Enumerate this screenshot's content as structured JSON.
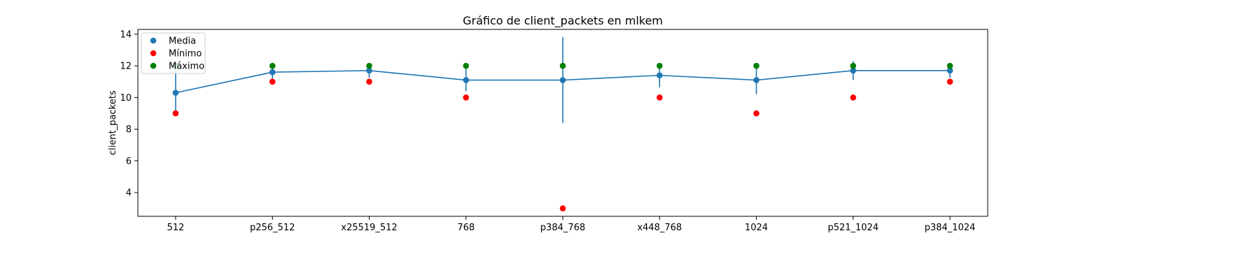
{
  "chart_data": {
    "type": "line",
    "title": "Gráfico de client_packets en mlkem",
    "xlabel": "",
    "ylabel": "client_packets",
    "ylim": [
      2.5,
      14.3
    ],
    "yticks": [
      4,
      6,
      8,
      10,
      12,
      14
    ],
    "categories": [
      "512",
      "p256_512",
      "x25519_512",
      "768",
      "p384_768",
      "x448_768",
      "1024",
      "p521_1024",
      "p384_1024"
    ],
    "series": [
      {
        "name": "Media",
        "color": "#1f77b4",
        "values": [
          10.3,
          11.6,
          11.7,
          11.1,
          11.1,
          11.4,
          11.1,
          11.7,
          11.7
        ],
        "error": [
          1.35,
          0.5,
          0.45,
          0.7,
          2.7,
          0.75,
          0.9,
          0.6,
          0.45
        ]
      },
      {
        "name": "Mínimo",
        "color": "#ff0000",
        "values": [
          9,
          11,
          11,
          10,
          3,
          10,
          9,
          10,
          11
        ]
      },
      {
        "name": "Máximo",
        "color": "#008000",
        "values": [
          12,
          12,
          12,
          12,
          12,
          12,
          12,
          12,
          12
        ]
      }
    ],
    "legend_position": "top-left",
    "grid": false
  }
}
